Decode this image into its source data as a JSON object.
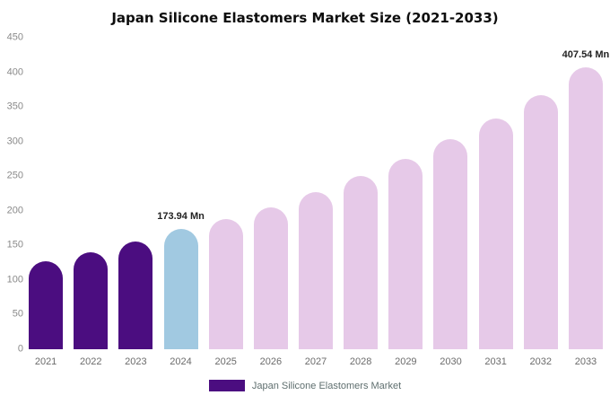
{
  "chart_data": {
    "type": "bar",
    "title": "Japan Silicone Elastomers Market Size (2021-2033)",
    "categories": [
      "2021",
      "2022",
      "2023",
      "2024",
      "2025",
      "2026",
      "2027",
      "2028",
      "2029",
      "2030",
      "2031",
      "2032",
      "2033"
    ],
    "values": [
      127,
      140,
      155,
      173.94,
      188,
      205,
      227,
      250,
      275,
      303,
      333,
      367,
      407.54
    ],
    "bar_colors": [
      "#4B0D80",
      "#4B0D80",
      "#4B0D80",
      "#A1C9E1",
      "#E6C9E8",
      "#E6C9E8",
      "#E6C9E8",
      "#E6C9E8",
      "#E6C9E8",
      "#E6C9E8",
      "#E6C9E8",
      "#E6C9E8",
      "#E6C9E8"
    ],
    "annotations": [
      {
        "index": 3,
        "text": "173.94 Mn"
      },
      {
        "index": 12,
        "text": "407.54 Mn"
      }
    ],
    "xlabel": "",
    "ylabel": "",
    "ylim": [
      0,
      450
    ],
    "yticks": [
      0,
      50,
      100,
      150,
      200,
      250,
      300,
      350,
      400,
      450
    ],
    "grid": false,
    "legend_position": "bottom",
    "legend": {
      "label": "Japan Silicone Elastomers Market",
      "color": "#4B0D80"
    }
  }
}
